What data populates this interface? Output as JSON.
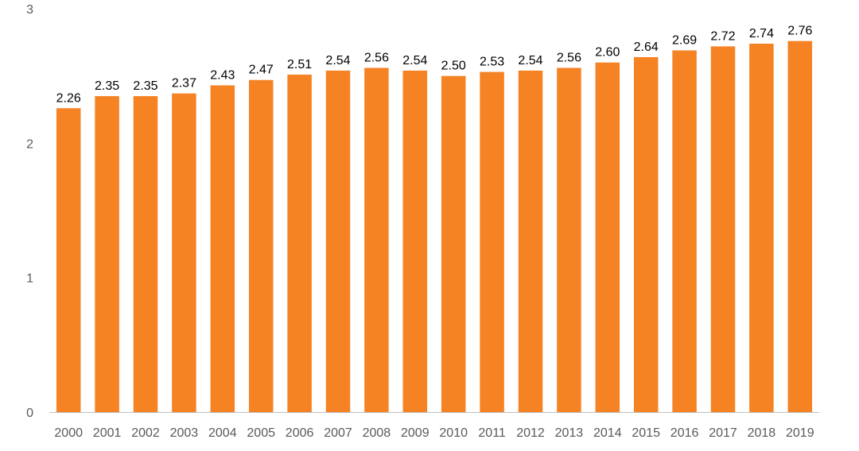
{
  "chart_data": {
    "type": "bar",
    "categories": [
      "2000",
      "2001",
      "2002",
      "2003",
      "2004",
      "2005",
      "2006",
      "2007",
      "2008",
      "2009",
      "2010",
      "2011",
      "2012",
      "2013",
      "2014",
      "2015",
      "2016",
      "2017",
      "2018",
      "2019"
    ],
    "values": [
      2.26,
      2.35,
      2.35,
      2.37,
      2.43,
      2.47,
      2.51,
      2.54,
      2.56,
      2.54,
      2.5,
      2.53,
      2.54,
      2.56,
      2.6,
      2.64,
      2.69,
      2.72,
      2.74,
      2.76
    ],
    "value_labels": [
      "2.26",
      "2.35",
      "2.35",
      "2.37",
      "2.43",
      "2.47",
      "2.51",
      "2.54",
      "2.56",
      "2.54",
      "2.50",
      "2.53",
      "2.54",
      "2.56",
      "2.60",
      "2.64",
      "2.69",
      "2.72",
      "2.74",
      "2.76"
    ],
    "ylim": [
      0,
      3
    ],
    "yticks": [
      "0",
      "1",
      "2",
      "3"
    ],
    "grid": false,
    "legend": "none",
    "colors": {
      "bar": "#f58223",
      "axis": "#bfbfbf",
      "tick_text": "#595959",
      "label_text": "#000000"
    }
  }
}
